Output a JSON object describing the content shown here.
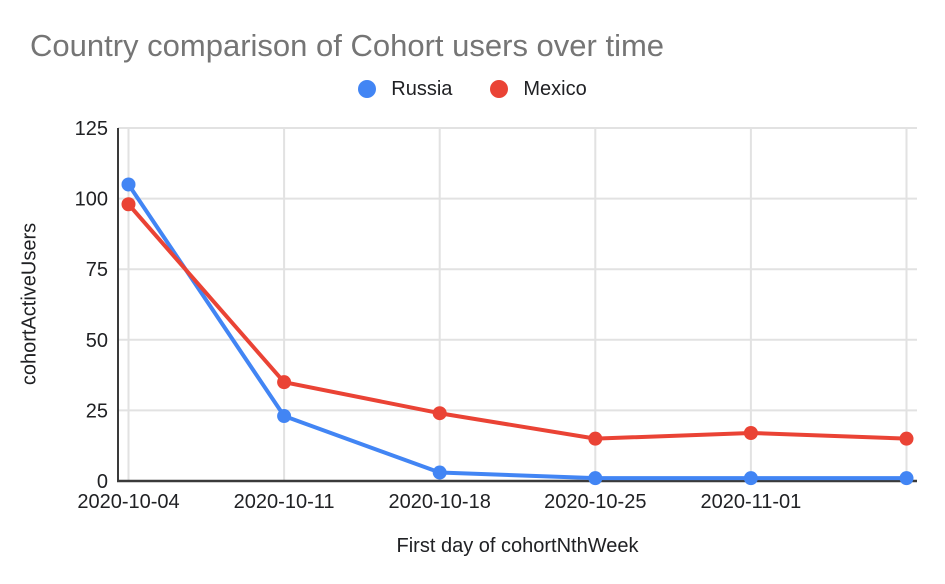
{
  "page": {
    "background": "#ffffff"
  },
  "chart_data": {
    "type": "line",
    "title": "Country comparison of Cohort users over time",
    "xlabel": "First day of cohortNthWeek",
    "ylabel": "cohortActiveUsers",
    "categories": [
      "2020-10-04",
      "2020-10-11",
      "2020-10-18",
      "2020-10-25",
      "2020-11-01",
      ""
    ],
    "series": [
      {
        "name": "Russia",
        "color": "#4285f4",
        "values": [
          105,
          23,
          3,
          1,
          1,
          1
        ]
      },
      {
        "name": "Mexico",
        "color": "#ea4335",
        "values": [
          98,
          35,
          24,
          15,
          17,
          15
        ]
      }
    ],
    "ylim": [
      0,
      125
    ],
    "yticks": [
      0,
      25,
      50,
      75,
      100,
      125
    ],
    "grid": true,
    "legend_position": "top",
    "style": {
      "title_color": "#757575",
      "tick_text_color": "#202124",
      "grid_color": "#e2e2e2",
      "axis_line_color": "#3a3a3a"
    }
  }
}
